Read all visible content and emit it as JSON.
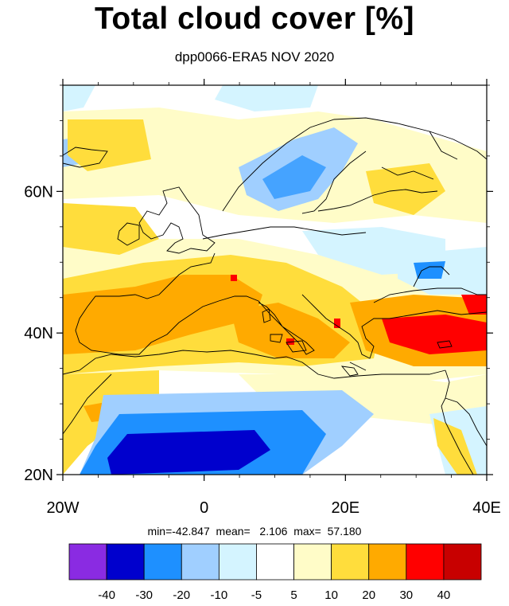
{
  "title": "Total cloud cover [%]",
  "subtitle": "dpp0066-ERA5 NOV 2020",
  "stats": {
    "min_label": "min=",
    "min": "-42.847",
    "mean_label": "mean=",
    "mean": "2.106",
    "max_label": "max=",
    "max": "57.180"
  },
  "x_ticks": [
    {
      "value": -20,
      "label": "20W"
    },
    {
      "value": 0,
      "label": "0"
    },
    {
      "value": 20,
      "label": "20E"
    },
    {
      "value": 40,
      "label": "40E"
    }
  ],
  "y_ticks": [
    {
      "value": 20,
      "label": "20N"
    },
    {
      "value": 40,
      "label": "40N"
    },
    {
      "value": 60,
      "label": "60N"
    }
  ],
  "lon_range": [
    -20,
    40
  ],
  "lat_range": [
    20,
    75
  ],
  "colorbar": {
    "colors": [
      "#8a2be2",
      "#0000cd",
      "#1e90ff",
      "#a0cfff",
      "#d4f4ff",
      "#ffffff",
      "#fffcc8",
      "#ffdd3c",
      "#ffaa00",
      "#ff0000",
      "#c80000"
    ],
    "labels": [
      "-40",
      "-30",
      "-20",
      "-10",
      "-5",
      "5",
      "10",
      "20",
      "30",
      "40"
    ]
  },
  "colors": {
    "coastline": "#000000"
  }
}
